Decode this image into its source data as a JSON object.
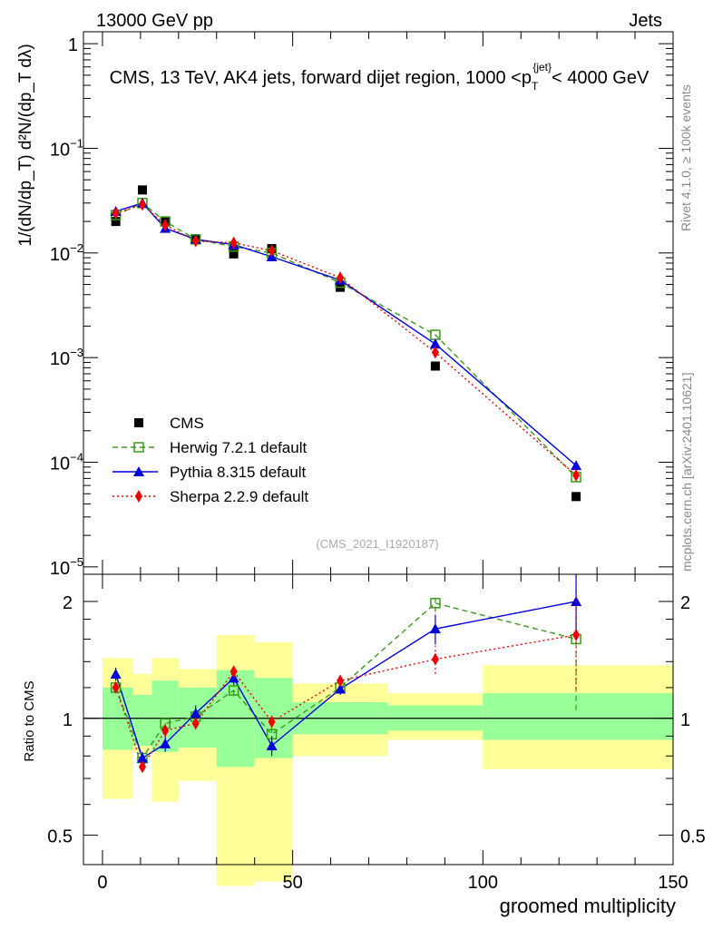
{
  "header": {
    "left": "13000 GeV pp",
    "right": "Jets"
  },
  "side_labels": {
    "rivet": "Rivet 4.1.0, ≥ 100k events",
    "mcplots": "mcplots.cern.ch [arXiv:2401.10621]"
  },
  "colors": {
    "cms": "#000000",
    "herwig": "#3a9a1a",
    "pythia": "#0000dd",
    "sherpa": "#ee0000",
    "band_outer": "#ffff99",
    "band_inner": "#99ff99"
  },
  "chart_data": [
    {
      "type": "line",
      "title": "CMS, 13 TeV, AK4 jets, forward dijet region, 1000 <p_T^{jet}< 4000 GeV",
      "title_parts": {
        "lead": "CMS, 13 TeV, AK4 jets, forward dijet region, 1000 <p",
        "sub": "T",
        "sup": "{jet}",
        "tail": "< 4000 GeV"
      },
      "ylabel": "1/(dN/dp_T) d²N/(dp_T dλ)",
      "yscale": "log",
      "ylim": [
        8.5e-06,
        1.3
      ],
      "xlim": [
        -5,
        150
      ],
      "yticks": [
        {
          "v": 1,
          "label": "1"
        },
        {
          "v": 0.1,
          "label": "10",
          "exp": "−1"
        },
        {
          "v": 0.01,
          "label": "10",
          "exp": "−2"
        },
        {
          "v": 0.001,
          "label": "10",
          "exp": "−3"
        },
        {
          "v": 0.0001,
          "label": "10",
          "exp": "−4"
        },
        {
          "v": 1e-05,
          "label": "10",
          "exp": "−5"
        }
      ],
      "watermark": "(CMS_2021_I1920187)",
      "legend": [
        {
          "name": "CMS",
          "key": "cms"
        },
        {
          "name": "Herwig 7.2.1 default",
          "key": "herwig"
        },
        {
          "name": "Pythia 8.315 default",
          "key": "pythia"
        },
        {
          "name": "Sherpa 2.2.9 default",
          "key": "sherpa"
        }
      ],
      "x": [
        3.5,
        10.5,
        16.5,
        24.5,
        34.5,
        44.5,
        62.5,
        87.5,
        124.5
      ],
      "series": [
        {
          "name": "CMS",
          "values": [
            0.02,
            0.04,
            0.02,
            0.0135,
            0.0098,
            0.011,
            0.0047,
            0.00083,
            4.7e-05
          ]
        },
        {
          "name": "Herwig 7.2.1 default",
          "values": [
            0.023,
            0.03,
            0.02,
            0.0135,
            0.0115,
            0.01,
            0.0052,
            0.00165,
            7.2e-05
          ]
        },
        {
          "name": "Pythia 8.315 default",
          "values": [
            0.025,
            0.03,
            0.0172,
            0.0135,
            0.012,
            0.0092,
            0.0055,
            0.00135,
            9.3e-05
          ]
        },
        {
          "name": "Sherpa 2.2.9 default",
          "values": [
            0.024,
            0.029,
            0.0185,
            0.013,
            0.0125,
            0.0105,
            0.0058,
            0.00112,
            7.5e-05
          ]
        }
      ]
    },
    {
      "type": "line",
      "title": "",
      "xlabel": "groomed multiplicity",
      "ylabel": "Ratio to CMS",
      "yscale": "log",
      "ylim": [
        0.42,
        2.35
      ],
      "xlim": [
        -5,
        150
      ],
      "yticks": [
        {
          "v": 0.5,
          "label": "0.5"
        },
        {
          "v": 1,
          "label": "1"
        },
        {
          "v": 2,
          "label": "2"
        }
      ],
      "xticks": [
        0,
        50,
        100,
        150
      ],
      "x": [
        3.5,
        10.5,
        16.5,
        24.5,
        34.5,
        44.5,
        62.5,
        87.5,
        124.5
      ],
      "bands": [
        {
          "x0": 0,
          "x1": 8,
          "inner": [
            0.83,
            1.2
          ],
          "outer": [
            0.62,
            1.43
          ]
        },
        {
          "x0": 8,
          "x1": 13,
          "inner": [
            0.85,
            1.15
          ],
          "outer": [
            0.82,
            1.3
          ]
        },
        {
          "x0": 13,
          "x1": 20,
          "inner": [
            0.82,
            1.25
          ],
          "outer": [
            0.61,
            1.43
          ]
        },
        {
          "x0": 20,
          "x1": 30,
          "inner": [
            0.84,
            1.2
          ],
          "outer": [
            0.69,
            1.34
          ]
        },
        {
          "x0": 30,
          "x1": 40,
          "inner": [
            0.75,
            1.33
          ],
          "outer": [
            0.37,
            1.64
          ]
        },
        {
          "x0": 40,
          "x1": 50,
          "inner": [
            0.79,
            1.27
          ],
          "outer": [
            0.38,
            1.57
          ]
        },
        {
          "x0": 50,
          "x1": 75,
          "inner": [
            0.91,
            1.1
          ],
          "outer": [
            0.8,
            1.23
          ]
        },
        {
          "x0": 75,
          "x1": 100,
          "inner": [
            0.93,
            1.08
          ],
          "outer": [
            0.88,
            1.16
          ]
        },
        {
          "x0": 100,
          "x1": 150,
          "inner": [
            0.88,
            1.16
          ],
          "outer": [
            0.74,
            1.37
          ]
        }
      ],
      "series": [
        {
          "name": "Herwig 7.2.1 default",
          "values": [
            1.2,
            0.79,
            0.97,
            1.01,
            1.18,
            0.91,
            1.2,
            1.98,
            1.6
          ],
          "errors": [
            0.03,
            0.02,
            0.03,
            0.03,
            0.04,
            0.04,
            0.04,
            0.1,
            0.55
          ]
        },
        {
          "name": "Pythia 8.315 default",
          "values": [
            1.3,
            0.79,
            0.86,
            1.03,
            1.27,
            0.85,
            1.19,
            1.7,
            2.0
          ],
          "errors": [
            0.05,
            0.03,
            0.04,
            0.05,
            0.05,
            0.05,
            0.04,
            0.15,
            0.35
          ]
        },
        {
          "name": "Sherpa 2.2.9 default",
          "values": [
            1.2,
            0.75,
            0.93,
            0.97,
            1.32,
            0.98,
            1.25,
            1.42,
            1.64
          ],
          "errors": [
            0.03,
            0.02,
            0.03,
            0.03,
            0.04,
            0.03,
            0.04,
            0.12,
            0.45
          ]
        }
      ]
    }
  ]
}
